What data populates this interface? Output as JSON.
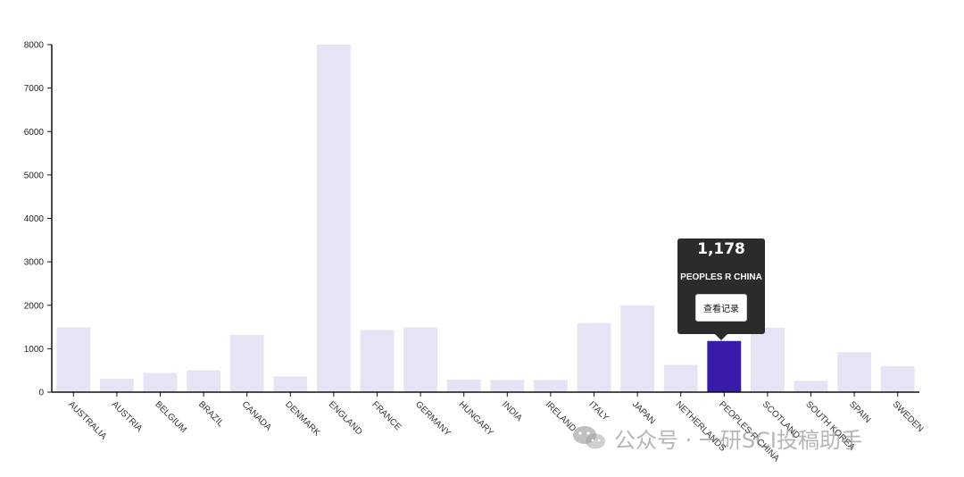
{
  "chart_data": {
    "type": "bar",
    "categories": [
      "AUSTRALIA",
      "AUSTRIA",
      "BELGIUM",
      "BRAZIL",
      "CANADA",
      "DENMARK",
      "ENGLAND",
      "FRANCE",
      "GERMANY",
      "HUNGARY",
      "INDIA",
      "IRELAND",
      "ITALY",
      "JAPAN",
      "NETHERLANDS",
      "PEOPLES R CHINA",
      "SCOTLAND",
      "SOUTH KOREA",
      "SPAIN",
      "SWEDEN"
    ],
    "values": [
      1490,
      310,
      440,
      500,
      1320,
      360,
      8000,
      1430,
      1490,
      290,
      280,
      280,
      1590,
      2000,
      630,
      1178,
      1480,
      260,
      920,
      600
    ],
    "ylim": [
      0,
      8000
    ],
    "yticks": [
      0,
      1000,
      2000,
      3000,
      4000,
      5000,
      6000,
      7000,
      8000
    ],
    "title": "",
    "xlabel": "",
    "ylabel": "",
    "highlighted_category": "PEOPLES R CHINA",
    "grid": false
  },
  "colors": {
    "bar": "#e7e3f4",
    "bar_highlight": "#3a1aa8",
    "axis": "#111111",
    "tooltip_bg": "#2b2b2b",
    "watermark": "#8a8a8a"
  },
  "tooltip": {
    "value": "1,178",
    "category": "PEOPLES R CHINA",
    "button_label": "查看记录"
  },
  "watermark": {
    "icon": "wechat-icon",
    "text": "公众号 · 一研SCI投稿助手"
  }
}
